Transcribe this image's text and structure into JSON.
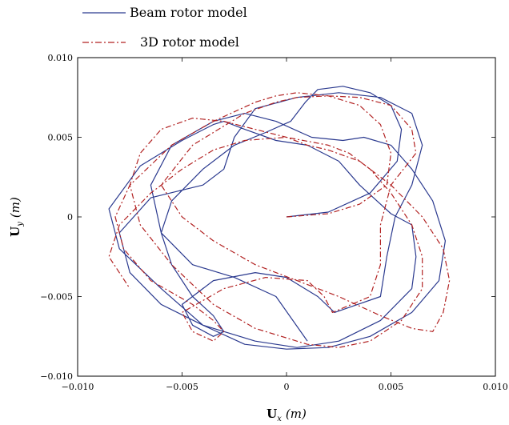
{
  "chart_data": {
    "type": "line",
    "title": "",
    "xlabel_main": "U",
    "xlabel_sub": "x",
    "xlabel_unit": "(m)",
    "ylabel_main": "U",
    "ylabel_sub": "y",
    "ylabel_unit": "(m)",
    "xlim": [
      -0.01,
      0.01
    ],
    "ylim": [
      -0.01,
      0.01
    ],
    "xticks": [
      -0.01,
      -0.005,
      0,
      0.005,
      0.01
    ],
    "yticks": [
      -0.01,
      -0.005,
      0,
      0.005,
      0.01
    ],
    "xtick_labels": [
      "−0.010",
      "−0.005",
      "0",
      "0.005",
      "0.010"
    ],
    "ytick_labels": [
      "−0.010",
      "−0.005",
      "0",
      "0.005",
      "0.010"
    ],
    "grid": false,
    "legend_position": "top-left, above plot",
    "series": [
      {
        "name": "Beam rotor model",
        "color": "#2b3a8f",
        "style": "solid",
        "x": [
          0,
          0.002,
          0.004,
          0.0053,
          0.0055,
          0.005,
          0.004,
          0.0027,
          0.0015,
          0.0009,
          0.0002,
          -0.001,
          -0.0025,
          -0.004,
          -0.0055,
          -0.006,
          -0.0055,
          -0.0045,
          -0.0035,
          -0.003,
          -0.0035,
          -0.0045,
          -0.005,
          -0.0035,
          -0.0015,
          0.0,
          0.0015,
          0.0023,
          0.0045,
          0.0048,
          0.0052,
          0.006,
          0.0065,
          0.006,
          0.0045,
          0.0025,
          0.0005,
          -0.0015,
          -0.0025,
          -0.003,
          -0.004,
          -0.0065,
          -0.008,
          -0.0075,
          -0.006,
          -0.004,
          -0.0015,
          0.0005,
          0.0025,
          0.0045,
          0.006,
          0.0062,
          0.006,
          0.005,
          0.0035,
          0.0025,
          0.001,
          -0.0005,
          -0.002,
          -0.003,
          -0.0035,
          -0.005,
          -0.007,
          -0.0085,
          -0.008,
          -0.006,
          -0.004,
          -0.002,
          0.0,
          0.002,
          0.004,
          0.006,
          0.0073,
          0.0076,
          0.007,
          0.006,
          0.005,
          0.0037,
          0.0027,
          0.0012,
          -0.0005,
          -0.002,
          -0.0035,
          -0.0055,
          -0.0065,
          -0.006,
          -0.0045,
          -0.0025,
          -0.0005,
          0.001
        ],
        "y": [
          0,
          0.0003,
          0.0015,
          0.0035,
          0.0055,
          0.007,
          0.0078,
          0.0082,
          0.008,
          0.0072,
          0.006,
          0.0053,
          0.0045,
          0.003,
          0.001,
          -0.001,
          -0.003,
          -0.005,
          -0.0062,
          -0.0072,
          -0.0075,
          -0.0068,
          -0.0055,
          -0.004,
          -0.0035,
          -0.0038,
          -0.005,
          -0.006,
          -0.005,
          -0.0025,
          0.0,
          0.002,
          0.0045,
          0.0065,
          0.0075,
          0.0078,
          0.0075,
          0.0068,
          0.005,
          0.003,
          0.002,
          0.0012,
          -0.001,
          -0.0035,
          -0.0055,
          -0.0068,
          -0.0078,
          -0.0082,
          -0.0078,
          -0.0065,
          -0.0045,
          -0.0025,
          -0.0005,
          0.0002,
          0.002,
          0.0035,
          0.0045,
          0.0048,
          0.0055,
          0.006,
          0.0058,
          0.0048,
          0.0032,
          0.0005,
          -0.002,
          -0.0045,
          -0.0068,
          -0.008,
          -0.0083,
          -0.0082,
          -0.0075,
          -0.006,
          -0.004,
          -0.0015,
          0.001,
          0.003,
          0.0045,
          0.005,
          0.0048,
          0.005,
          0.006,
          0.0065,
          0.006,
          0.0045,
          0.002,
          -0.001,
          -0.003,
          -0.0038,
          -0.005,
          -0.0078
        ]
      },
      {
        "name": "3D rotor model",
        "color": "#b22222",
        "style": "dashdot",
        "x": [
          0,
          0.002,
          0.0035,
          0.0048,
          0.005,
          0.0045,
          0.0035,
          0.002,
          0.0005,
          -0.0005,
          -0.0015,
          -0.0035,
          -0.0055,
          -0.0075,
          -0.0082,
          -0.0078,
          -0.0065,
          -0.0045,
          -0.0035,
          -0.003,
          -0.0035,
          -0.0045,
          -0.005,
          -0.003,
          -0.001,
          0.001,
          0.0018,
          0.0022,
          0.004,
          0.0045,
          0.0045,
          0.005,
          0.0062,
          0.006,
          0.005,
          0.0035,
          0.002,
          0.0005,
          -0.0005,
          -0.002,
          -0.0045,
          -0.006,
          -0.005,
          -0.0035,
          -0.0015,
          0.0005,
          0.0025,
          0.0045,
          0.006,
          0.007,
          0.0075,
          0.0078,
          0.0075,
          0.0065,
          0.005,
          0.0035,
          0.002,
          0.001,
          0.0,
          -0.0015,
          -0.003,
          -0.0045,
          -0.006,
          -0.007,
          -0.0075,
          -0.007,
          -0.0055,
          -0.0035,
          -0.0015,
          0.001,
          0.0025,
          0.004,
          0.0055,
          0.0065,
          0.0065,
          0.006,
          0.005,
          0.004,
          0.003,
          0.002,
          0.0,
          -0.002,
          -0.0035,
          -0.005,
          -0.0065,
          -0.008,
          -0.0085,
          -0.0075
        ],
        "y": [
          0,
          0.0002,
          0.0008,
          0.002,
          0.004,
          0.0058,
          0.007,
          0.0076,
          0.0078,
          0.0076,
          0.0072,
          0.006,
          0.0045,
          0.002,
          0.0,
          -0.002,
          -0.004,
          -0.0055,
          -0.0065,
          -0.0072,
          -0.0078,
          -0.0072,
          -0.006,
          -0.0045,
          -0.0038,
          -0.004,
          -0.005,
          -0.006,
          -0.005,
          -0.003,
          -0.0005,
          0.002,
          0.004,
          0.0055,
          0.007,
          0.0075,
          0.0076,
          0.0075,
          0.0072,
          0.0065,
          0.0045,
          0.002,
          0.0,
          -0.0015,
          -0.003,
          -0.004,
          -0.005,
          -0.0062,
          -0.007,
          -0.0072,
          -0.006,
          -0.004,
          -0.002,
          0.0,
          0.002,
          0.0035,
          0.0042,
          0.0045,
          0.005,
          0.0055,
          0.006,
          0.0062,
          0.0055,
          0.004,
          0.002,
          -0.0005,
          -0.003,
          -0.0055,
          -0.007,
          -0.008,
          -0.0082,
          -0.0078,
          -0.0065,
          -0.0045,
          -0.0025,
          -0.0005,
          0.0015,
          0.003,
          0.004,
          0.0045,
          0.005,
          0.0048,
          0.0042,
          0.003,
          0.0015,
          -0.0005,
          -0.0025,
          -0.0045
        ]
      }
    ]
  }
}
